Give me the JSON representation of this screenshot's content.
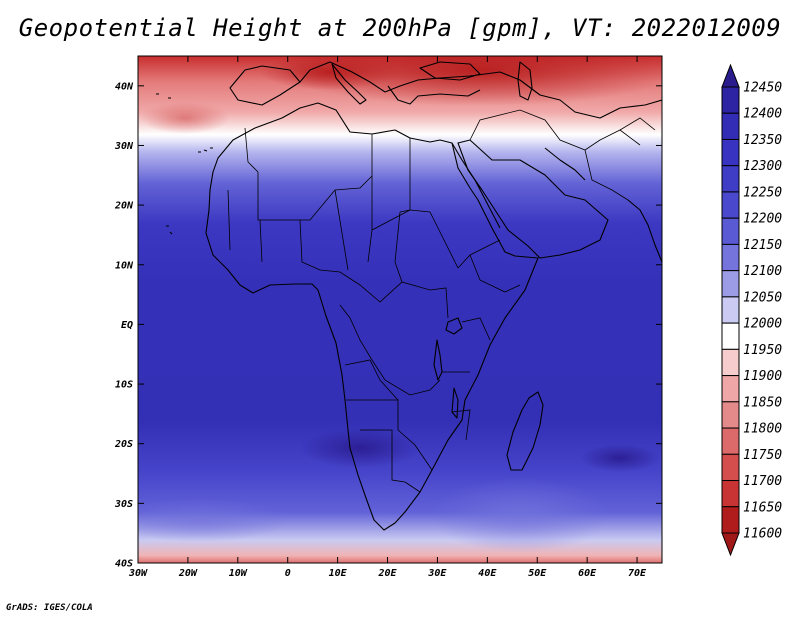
{
  "title": "Geopotential Height at 200hPa [gpm], VT: 2022012009",
  "credit": "GrADS: IGES/COLA",
  "map": {
    "lon_range": [
      -30,
      75
    ],
    "lat_range": [
      -40,
      45
    ],
    "lon_ticks": [
      {
        "v": -30,
        "label": "30W"
      },
      {
        "v": -20,
        "label": "20W"
      },
      {
        "v": -10,
        "label": "10W"
      },
      {
        "v": 0,
        "label": "0"
      },
      {
        "v": 10,
        "label": "10E"
      },
      {
        "v": 20,
        "label": "20E"
      },
      {
        "v": 30,
        "label": "30E"
      },
      {
        "v": 40,
        "label": "40E"
      },
      {
        "v": 50,
        "label": "50E"
      },
      {
        "v": 60,
        "label": "60E"
      },
      {
        "v": 70,
        "label": "70E"
      }
    ],
    "lat_ticks": [
      {
        "v": 40,
        "label": "40N"
      },
      {
        "v": 30,
        "label": "30N"
      },
      {
        "v": 20,
        "label": "20N"
      },
      {
        "v": 10,
        "label": "10N"
      },
      {
        "v": 0,
        "label": "EQ"
      },
      {
        "v": -10,
        "label": "10S"
      },
      {
        "v": -20,
        "label": "20S"
      },
      {
        "v": -30,
        "label": "30S"
      },
      {
        "v": -40,
        "label": "40S"
      }
    ]
  },
  "colorbar": {
    "levels": [
      12450,
      12400,
      12350,
      12300,
      12250,
      12200,
      12150,
      12100,
      12050,
      12000,
      11950,
      11900,
      11850,
      11800,
      11750,
      11700,
      11650,
      11600
    ],
    "colors": [
      "#2a1c8c",
      "#2d24a4",
      "#322db4",
      "#3833c0",
      "#3f3cc6",
      "#4a48cc",
      "#5a5ad4",
      "#7474dc",
      "#9c9ce6",
      "#cacaf2",
      "#ffffff",
      "#f6cccc",
      "#eea6a6",
      "#e48a8a",
      "#dc6a6a",
      "#d44e4e",
      "#c83434",
      "#b01c1c",
      "#a01818"
    ]
  }
}
